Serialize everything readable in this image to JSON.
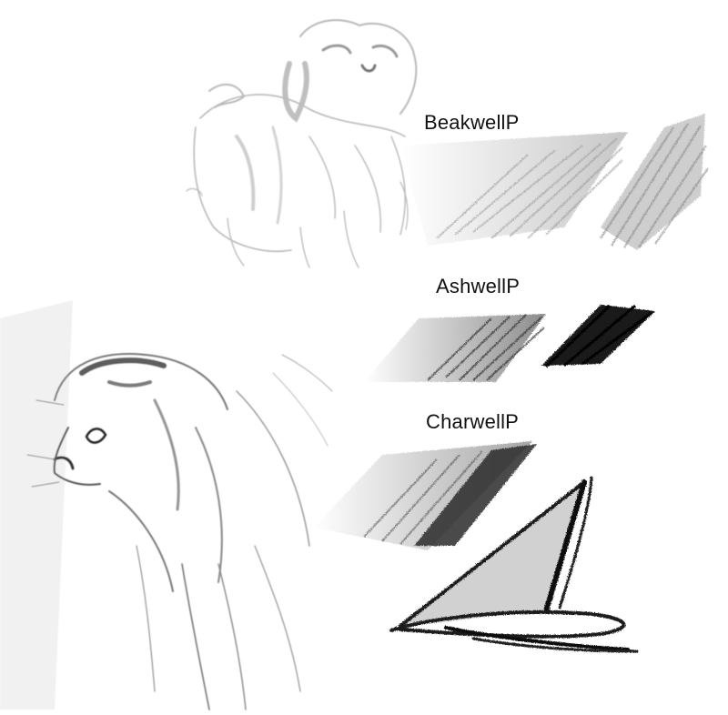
{
  "brushes": [
    {
      "id": "beak",
      "label": "BeakwellP",
      "tone": "light-graphite"
    },
    {
      "id": "ash",
      "label": "AshwellP",
      "tone": "soft-black"
    },
    {
      "id": "char",
      "label": "CharwellP",
      "tone": "charcoal"
    }
  ],
  "sketches": [
    {
      "subject": "dog",
      "icon": "dog-sketch-icon"
    },
    {
      "subject": "cat",
      "icon": "cat-sketch-icon"
    },
    {
      "subject": "shape",
      "icon": "hat-sketch-icon"
    }
  ],
  "colors": {
    "background": "#ffffff",
    "text": "#111111",
    "graphite_light": "#bdbdbd",
    "graphite_mid": "#7a7a7a",
    "charcoal": "#1a1a1a"
  }
}
